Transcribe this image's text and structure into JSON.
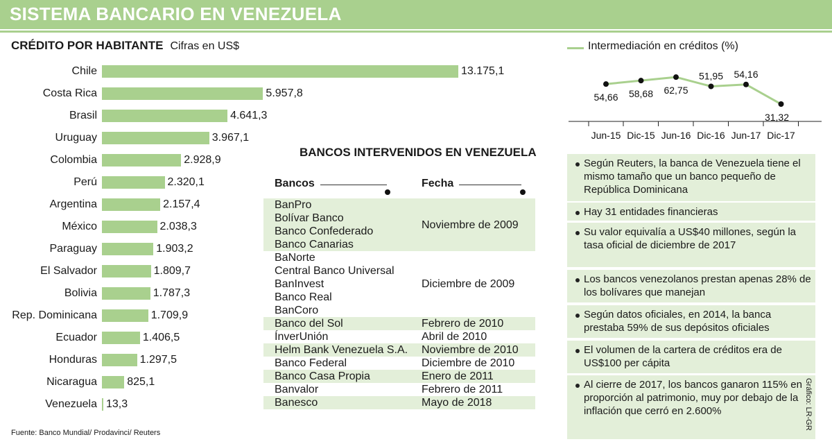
{
  "header": {
    "title": "SISTEMA BANCARIO EN VENEZUELA"
  },
  "credit_section": {
    "title": "CRÉDITO POR HABITANTE",
    "unit": "Cifras en US$"
  },
  "source": "Fuente: Banco Mundial/ Prodavinci/ Reuters",
  "graphic_credit": "Gráfico: LR-GR",
  "banks_table": {
    "title": "BANCOS INTERVENIDOS EN VENEZUELA",
    "col_banks": "Bancos",
    "col_date": "Fecha",
    "groups": [
      {
        "banks": [
          "BanPro",
          "Bolívar Banco",
          "Banco Confederado",
          "Banco Canarias"
        ],
        "date": "Noviembre de 2009"
      },
      {
        "banks": [
          "BaNorte",
          "Central Banco Universal",
          "BanInvest",
          "Banco Real",
          "BanCoro"
        ],
        "date": "Diciembre de 2009"
      },
      {
        "banks": [
          "Banco del Sol"
        ],
        "date": "Febrero de 2010"
      },
      {
        "banks": [
          "ÍnverUnión"
        ],
        "date": "Abril de 2010"
      },
      {
        "banks": [
          "Helm Bank Venezuela S.A."
        ],
        "date": "Noviembre de 2010"
      },
      {
        "banks": [
          "Banco Federal"
        ],
        "date": "Diciembre de 2010"
      },
      {
        "banks": [
          "Banco Casa Propia"
        ],
        "date": "Enero de 2011"
      },
      {
        "banks": [
          "Banvalor"
        ],
        "date": "Febrero de 2011"
      },
      {
        "banks": [
          "Banesco"
        ],
        "date": "Mayo de 2018"
      }
    ]
  },
  "info_items": [
    "Según Reuters, la banca de Venezuela tiene el mismo tamaño que un banco pequeño de República Dominicana",
    "Hay 31 entidades financieras",
    "Su valor equivalía a US$40 millones, según la tasa oficial de diciembre de 2017",
    "Los bancos venezolanos prestan apenas 28% de los bolívares que manejan",
    "Según datos oficiales, en 2014, la banca prestaba 59% de sus depósitos oficiales",
    "El volumen de la cartera de créditos era de US$100 per cápita",
    "Al cierre de 2017, los bancos ganaron 115% en proporción al patrimonio, muy por debajo de la inflación que cerró en 2.600%"
  ],
  "colors": {
    "accent": "#a9d08e",
    "light_fill": "#e3efd9"
  },
  "chart_data": [
    {
      "type": "bar",
      "orientation": "horizontal",
      "title": "CRÉDITO POR HABITANTE",
      "subtitle": "Cifras en US$",
      "categories": [
        "Chile",
        "Costa Rica",
        "Brasil",
        "Uruguay",
        "Colombia",
        "Perú",
        "Argentina",
        "México",
        "Paraguay",
        "El Salvador",
        "Bolivia",
        "Rep. Dominicana",
        "Ecuador",
        "Honduras",
        "Nicaragua",
        "Venezuela"
      ],
      "values": [
        13175.1,
        5957.8,
        4641.3,
        3967.1,
        2928.9,
        2320.1,
        2157.4,
        2038.3,
        1903.2,
        1809.7,
        1787.3,
        1709.9,
        1406.5,
        1297.5,
        825.1,
        13.3
      ],
      "value_labels": [
        "13.175,1",
        "5.957,8",
        "4.641,3",
        "3.967,1",
        "2.928,9",
        "2.320,1",
        "2.157,4",
        "2.038,3",
        "1.903,2",
        "1.809,7",
        "1.787,3",
        "1.709,9",
        "1.406,5",
        "1.297,5",
        "825,1",
        "13,3"
      ],
      "xlim": [
        0,
        13175.1
      ],
      "grid": false
    },
    {
      "type": "line",
      "legend": "Intermediación en créditos  (%)",
      "legend_position": "top",
      "categories": [
        "Jun-15",
        "Dic-15",
        "Jun-16",
        "Dic-16",
        "Jun-17",
        "Dic-17"
      ],
      "values": [
        54.66,
        58.68,
        62.75,
        51.95,
        54.16,
        31.32
      ],
      "value_labels": [
        "54,66",
        "58,68",
        "62,75",
        "51,95",
        "54,16",
        "31,32"
      ],
      "ylim": [
        20,
        75
      ],
      "grid": false
    }
  ]
}
